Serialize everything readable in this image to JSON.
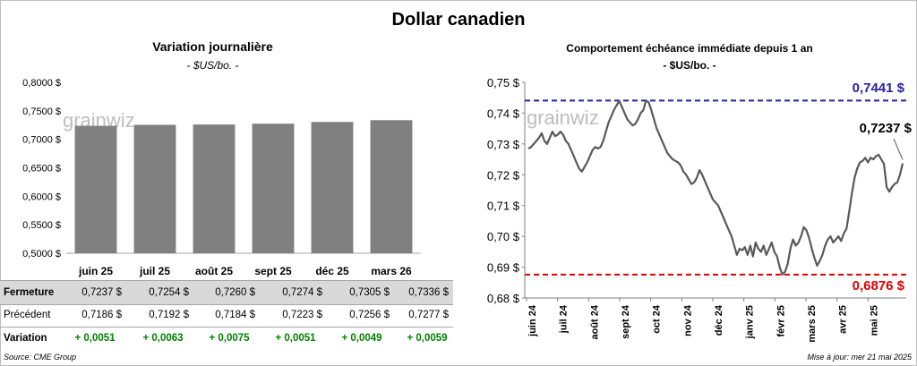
{
  "title": "Dollar canadien",
  "left_chart": {
    "title": "Variation  journalière",
    "subtitle": "- $US/bo. -",
    "watermark": "grainwiz",
    "chart_data": {
      "type": "bar",
      "categories": [
        "juin 25",
        "juil 25",
        "août 25",
        "sept 25",
        "déc 25",
        "mars 26"
      ],
      "values": [
        0.7237,
        0.7254,
        0.726,
        0.7274,
        0.7305,
        0.7336
      ],
      "ylim": [
        0.5,
        0.8
      ],
      "yticks": [
        "0,8000 $",
        "0,7500 $",
        "0,7000 $",
        "0,6500 $",
        "0,6000 $",
        "0,5500 $",
        "0,5000 $"
      ],
      "color": "#808080"
    }
  },
  "table": {
    "fermeture_label": "Fermeture",
    "precedent_label": "Précédent",
    "variation_label": "Variation",
    "fermeture": [
      "0,7237  $",
      "0,7254  $",
      "0,7260  $",
      "0,7274  $",
      "0,7305  $",
      "0,7336  $"
    ],
    "precedent": [
      "0,7186  $",
      "0,7192  $",
      "0,7184  $",
      "0,7223  $",
      "0,7256  $",
      "0,7277  $"
    ],
    "variation": [
      "+ 0,0051",
      "+ 0,0063",
      "+ 0,0075",
      "+ 0,0051",
      "+ 0,0049",
      "+ 0,0059"
    ]
  },
  "right_chart": {
    "title": "Comportement échéance immédiate depuis 1 an",
    "subtitle": "- $US/bo. -",
    "watermark": "grainwiz",
    "high_label": "0,7441 $",
    "low_label": "0,6876 $",
    "last_label": "0,7237 $",
    "chart_data": {
      "type": "line",
      "ylim": [
        0.68,
        0.75
      ],
      "yticks": [
        "0,75 $",
        "0,74 $",
        "0,73 $",
        "0,72 $",
        "0,71 $",
        "0,70 $",
        "0,69 $",
        "0,68 $"
      ],
      "xticks": [
        "juin 24",
        "juil 24",
        "août 24",
        "sept 24",
        "oct 24",
        "nov 24",
        "déc 24",
        "janv 25",
        "févr 25",
        "mars 25",
        "avr 25",
        "mai 25"
      ],
      "high": 0.7441,
      "low": 0.6876,
      "high_color": "#2222aa",
      "low_color": "#e00000",
      "line_color": "#595959",
      "values": [
        0.7285,
        0.729,
        0.73,
        0.731,
        0.732,
        0.7335,
        0.731,
        0.73,
        0.732,
        0.734,
        0.7325,
        0.733,
        0.734,
        0.733,
        0.731,
        0.73,
        0.728,
        0.726,
        0.724,
        0.722,
        0.721,
        0.7225,
        0.724,
        0.726,
        0.728,
        0.729,
        0.7285,
        0.729,
        0.731,
        0.734,
        0.737,
        0.739,
        0.741,
        0.7425,
        0.744,
        0.742,
        0.74,
        0.738,
        0.737,
        0.736,
        0.7365,
        0.738,
        0.74,
        0.741,
        0.7441,
        0.7435,
        0.741,
        0.738,
        0.735,
        0.733,
        0.731,
        0.729,
        0.727,
        0.726,
        0.725,
        0.7245,
        0.724,
        0.723,
        0.721,
        0.72,
        0.7185,
        0.717,
        0.7175,
        0.719,
        0.7215,
        0.72,
        0.718,
        0.716,
        0.714,
        0.712,
        0.711,
        0.71,
        0.708,
        0.706,
        0.704,
        0.702,
        0.7,
        0.697,
        0.694,
        0.696,
        0.6955,
        0.6965,
        0.694,
        0.697,
        0.6935,
        0.698,
        0.696,
        0.695,
        0.697,
        0.694,
        0.696,
        0.698,
        0.695,
        0.6935,
        0.69,
        0.6876,
        0.6885,
        0.691,
        0.696,
        0.699,
        0.697,
        0.698,
        0.7,
        0.703,
        0.702,
        0.6995,
        0.696,
        0.693,
        0.6905,
        0.692,
        0.694,
        0.697,
        0.699,
        0.7,
        0.698,
        0.699,
        0.7,
        0.6985,
        0.701,
        0.7025,
        0.708,
        0.714,
        0.719,
        0.722,
        0.724,
        0.7245,
        0.7255,
        0.724,
        0.7255,
        0.725,
        0.726,
        0.7265,
        0.725,
        0.7235,
        0.716,
        0.7145,
        0.716,
        0.717,
        0.7175,
        0.72,
        0.7237
      ]
    }
  },
  "footer": {
    "source": "Source: CME Group",
    "updated": "Mise à jour: mer 21 mai 2025"
  }
}
